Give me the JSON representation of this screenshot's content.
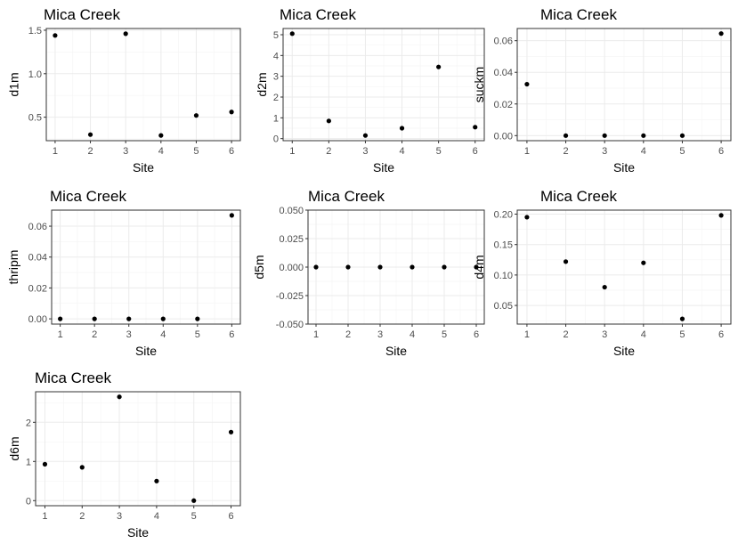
{
  "chart_data": [
    {
      "type": "scatter",
      "title": "Mica Creek",
      "xlabel": "Site",
      "ylabel": "d1m",
      "x": [
        1,
        2,
        3,
        4,
        5,
        6
      ],
      "y": [
        1.44,
        0.3,
        1.46,
        0.29,
        0.52,
        0.56
      ],
      "xticks": [
        "1",
        "2",
        "3",
        "4",
        "5",
        "6"
      ],
      "yticks": [
        "0.5",
        "1.0",
        "1.5"
      ],
      "ylim": [
        0.23,
        1.52
      ],
      "grid": true
    },
    {
      "type": "scatter",
      "title": "Mica Creek",
      "xlabel": "Site",
      "ylabel": "d2m",
      "x": [
        1,
        2,
        3,
        4,
        5,
        6
      ],
      "y": [
        5.05,
        0.85,
        0.15,
        0.5,
        3.45,
        0.55
      ],
      "xticks": [
        "1",
        "2",
        "3",
        "4",
        "5",
        "6"
      ],
      "yticks": [
        "0",
        "1",
        "2",
        "3",
        "4",
        "5"
      ],
      "ylim": [
        -0.1,
        5.3
      ],
      "grid": true
    },
    {
      "type": "scatter",
      "title": "Mica Creek",
      "xlabel": "Site",
      "ylabel": "suckm",
      "x": [
        1,
        2,
        3,
        4,
        5,
        6
      ],
      "y": [
        0.0325,
        0.0,
        0.0,
        0.0,
        0.0,
        0.0645
      ],
      "xticks": [
        "1",
        "2",
        "3",
        "4",
        "5",
        "6"
      ],
      "yticks": [
        "0.00",
        "0.02",
        "0.04",
        "0.06"
      ],
      "ylim": [
        -0.0032,
        0.0677
      ],
      "grid": true
    },
    {
      "type": "scatter",
      "title": "Mica Creek",
      "xlabel": "Site",
      "ylabel": "thripm",
      "x": [
        1,
        2,
        3,
        4,
        5,
        6
      ],
      "y": [
        0.0,
        0.0,
        0.0,
        0.0,
        0.0,
        0.067
      ],
      "xticks": [
        "1",
        "2",
        "3",
        "4",
        "5",
        "6"
      ],
      "yticks": [
        "0.00",
        "0.02",
        "0.04",
        "0.06"
      ],
      "ylim": [
        -0.0034,
        0.0704
      ],
      "grid": true
    },
    {
      "type": "scatter",
      "title": "Mica Creek",
      "xlabel": "Site",
      "ylabel": "d5m",
      "x": [
        1,
        2,
        3,
        4,
        5,
        6
      ],
      "y": [
        0,
        0,
        0,
        0,
        0,
        0
      ],
      "xticks": [
        "1",
        "2",
        "3",
        "4",
        "5",
        "6"
      ],
      "yticks": [
        "-0.050",
        "-0.025",
        "0.000",
        "0.025",
        "0.050"
      ],
      "ylim": [
        -0.05,
        0.05
      ],
      "grid": true
    },
    {
      "type": "scatter",
      "title": "Mica Creek",
      "xlabel": "Site",
      "ylabel": "d4m",
      "x": [
        1,
        2,
        3,
        4,
        5,
        6
      ],
      "y": [
        0.195,
        0.122,
        0.08,
        0.12,
        0.028,
        0.198
      ],
      "xticks": [
        "1",
        "2",
        "3",
        "4",
        "5",
        "6"
      ],
      "yticks": [
        "0.05",
        "0.10",
        "0.15",
        "0.20"
      ],
      "ylim": [
        0.0194,
        0.2066
      ],
      "grid": true
    },
    {
      "type": "scatter",
      "title": "Mica Creek",
      "xlabel": "Site",
      "ylabel": "d6m",
      "x": [
        1,
        2,
        3,
        4,
        5,
        6
      ],
      "y": [
        0.93,
        0.85,
        2.65,
        0.5,
        0.0,
        1.75
      ],
      "xticks": [
        "1",
        "2",
        "3",
        "4",
        "5",
        "6"
      ],
      "yticks": [
        "0",
        "1",
        "2"
      ],
      "ylim": [
        -0.13,
        2.78
      ],
      "grid": true
    }
  ]
}
